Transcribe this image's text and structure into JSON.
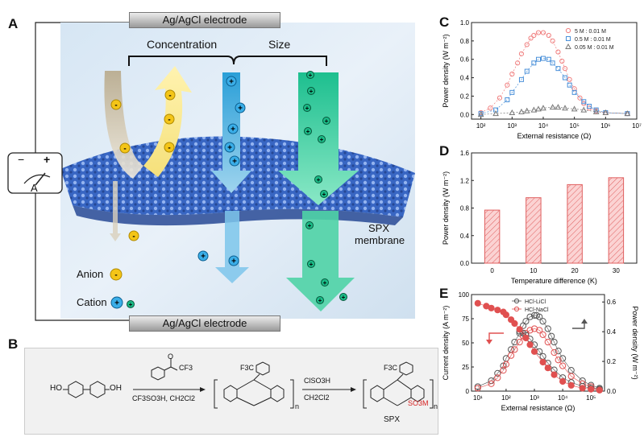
{
  "panels": {
    "a": "A",
    "b": "B",
    "c": "C",
    "d": "D",
    "e": "E"
  },
  "schematic": {
    "top_electrode": "Ag/AgCl electrode",
    "bottom_electrode": "Ag/AgCl electrode",
    "concentration": "Concentration",
    "size": "Size",
    "membrane_line1": "SPX",
    "membrane_line2": "membrane",
    "anion": "Anion",
    "cation": "Cation",
    "meter_minus": "−",
    "meter_plus": "+",
    "meter_unit": "A",
    "anion_sign": "-",
    "cation_sign": "+"
  },
  "reaction": {
    "reactant_oh_left": "HO",
    "reactant_oh_right": "OH",
    "reagent_top": "CF3",
    "reagent_o": "O",
    "conditions1": "CF3SO3H, CH2Cl2",
    "conditions2_top": "ClSO3H",
    "conditions2_bottom": "CH2Cl2",
    "polymer_cf3": "F3C",
    "polymer_n": "n",
    "sulfonate": "SO3M",
    "product_name": "SPX"
  },
  "chart_data": [
    {
      "panel": "C",
      "type": "line",
      "xlabel": "External resistance (Ω)",
      "ylabel": "Power density (W m⁻²)",
      "xscale": "log",
      "xlim": [
        50,
        10000000
      ],
      "ylim": [
        -0.05,
        1.0
      ],
      "yticks": [
        "0.0",
        "0.2",
        "0.4",
        "0.6",
        "0.8",
        "1.0"
      ],
      "xticks": [
        "10²",
        "10³",
        "10⁴",
        "10⁵",
        "10⁶",
        "10⁷"
      ],
      "legend_position": "top-right",
      "series": [
        {
          "name": "5 M : 0.01 M",
          "color": "#f08080",
          "marker": "circle",
          "x": [
            100,
            200,
            400,
            700,
            1000,
            1500,
            2000,
            3000,
            4000,
            5000,
            7000,
            10000,
            15000,
            20000,
            30000,
            40000,
            50000,
            70000,
            100000,
            150000,
            200000,
            300000,
            500000,
            1000000,
            5000000
          ],
          "y": [
            0.02,
            0.07,
            0.18,
            0.32,
            0.44,
            0.56,
            0.66,
            0.76,
            0.83,
            0.86,
            0.89,
            0.89,
            0.86,
            0.8,
            0.68,
            0.58,
            0.5,
            0.38,
            0.28,
            0.18,
            0.12,
            0.07,
            0.04,
            0.02,
            0.01
          ]
        },
        {
          "name": "0.5 M : 0.01 M",
          "color": "#4a90d9",
          "marker": "square",
          "x": [
            100,
            300,
            700,
            1000,
            2000,
            3000,
            5000,
            7000,
            10000,
            15000,
            20000,
            30000,
            50000,
            70000,
            100000,
            200000,
            300000,
            500000,
            1000000,
            5000000
          ],
          "y": [
            0.01,
            0.05,
            0.16,
            0.24,
            0.38,
            0.47,
            0.56,
            0.6,
            0.61,
            0.6,
            0.56,
            0.5,
            0.4,
            0.32,
            0.24,
            0.14,
            0.09,
            0.05,
            0.02,
            0.01
          ]
        },
        {
          "name": "0.05 M : 0.01 M",
          "color": "#777777",
          "marker": "triangle",
          "x": [
            100,
            300,
            1000,
            2000,
            3000,
            5000,
            7000,
            10000,
            20000,
            30000,
            50000,
            100000,
            200000,
            500000,
            1000000,
            5000000
          ],
          "y": [
            0.0,
            0.01,
            0.02,
            0.03,
            0.04,
            0.05,
            0.06,
            0.07,
            0.08,
            0.08,
            0.07,
            0.06,
            0.05,
            0.03,
            0.02,
            0.01
          ]
        }
      ]
    },
    {
      "panel": "D",
      "type": "bar",
      "xlabel": "Temperature difference (K)",
      "ylabel": "Power density (W m⁻²)",
      "categories": [
        "0",
        "10",
        "20",
        "30"
      ],
      "values": [
        0.77,
        0.95,
        1.14,
        1.24
      ],
      "ylim": [
        0,
        1.6
      ],
      "yticks": [
        "0.0",
        "0.4",
        "0.8",
        "1.2",
        "1.6"
      ],
      "color": "#f08080"
    },
    {
      "panel": "E",
      "type": "line",
      "xlabel": "External resistance (Ω)",
      "ylabel": "Current density (A m⁻²)",
      "ylabel_right": "Power density (W m⁻²)",
      "xscale": "log",
      "xlim": [
        6,
        300000
      ],
      "ylim": [
        0,
        100
      ],
      "ylim_right": [
        0,
        0.65
      ],
      "yticks": [
        "0",
        "25",
        "50",
        "75",
        "100"
      ],
      "yticks_right": [
        "0.0",
        "0.2",
        "0.4",
        "0.6"
      ],
      "xticks": [
        "10¹",
        "10²",
        "10³",
        "10⁴",
        "10⁵"
      ],
      "legend_position": "top-center",
      "series": [
        {
          "name": "HCl-LiCl",
          "color": "#555555",
          "axis": "right",
          "marker": "open-circle",
          "x": [
            10,
            30,
            50,
            80,
            100,
            150,
            200,
            300,
            400,
            500,
            700,
            1000,
            1200,
            1500,
            2000,
            3000,
            4000,
            5000,
            7000,
            10000,
            20000,
            50000,
            100000,
            200000
          ],
          "y": [
            0.03,
            0.07,
            0.12,
            0.17,
            0.22,
            0.28,
            0.33,
            0.39,
            0.44,
            0.47,
            0.5,
            0.51,
            0.51,
            0.5,
            0.47,
            0.42,
            0.37,
            0.33,
            0.27,
            0.22,
            0.14,
            0.07,
            0.04,
            0.02
          ]
        },
        {
          "name": "HCl-NaCl",
          "color": "#e05050",
          "axis": "right",
          "marker": "open-circle",
          "x": [
            10,
            30,
            50,
            80,
            100,
            150,
            200,
            300,
            400,
            500,
            700,
            1000,
            1500,
            2000,
            3000,
            5000,
            7000,
            10000,
            20000,
            50000,
            100000,
            200000
          ],
          "y": [
            0.02,
            0.05,
            0.09,
            0.14,
            0.18,
            0.24,
            0.28,
            0.33,
            0.37,
            0.39,
            0.41,
            0.42,
            0.41,
            0.38,
            0.33,
            0.26,
            0.21,
            0.17,
            0.1,
            0.05,
            0.03,
            0.01
          ]
        },
        {
          "name": "HCl-LiCl current",
          "color": "#555555",
          "axis": "left",
          "marker": "open-circle",
          "x": [
            300,
            400,
            500,
            700,
            1000,
            1500,
            2000,
            3000,
            5000,
            10000,
            20000,
            50000,
            100000,
            200000
          ],
          "y": [
            62,
            60,
            58,
            54,
            48,
            41,
            36,
            29,
            22,
            14,
            9,
            5,
            3,
            2
          ]
        },
        {
          "name": "HCl-NaCl current",
          "color": "#e05050",
          "axis": "left",
          "marker": "filled-circle",
          "x": [
            10,
            20,
            30,
            50,
            80,
            100,
            150,
            200,
            300,
            500,
            700,
            1000,
            2000,
            3000,
            5000,
            10000,
            20000,
            50000,
            100000,
            200000
          ],
          "y": [
            91,
            88,
            86,
            84,
            82,
            79,
            74,
            70,
            64,
            55,
            48,
            41,
            30,
            24,
            17,
            10,
            6,
            3,
            2,
            1
          ]
        }
      ]
    }
  ]
}
